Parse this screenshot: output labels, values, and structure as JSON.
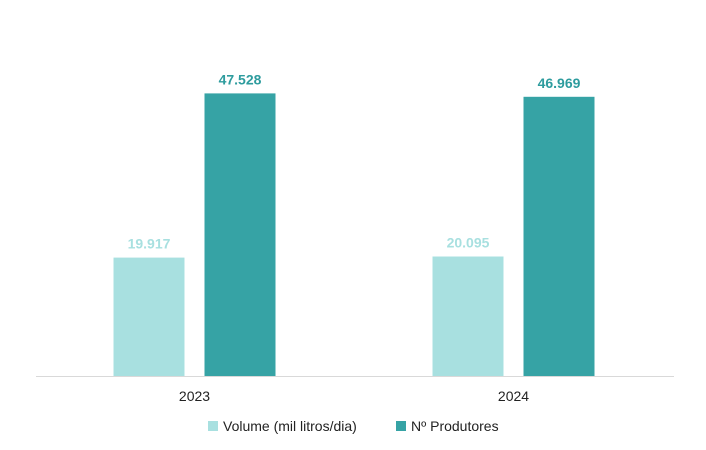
{
  "chart_data": {
    "type": "bar",
    "categories": [
      "2023",
      "2024"
    ],
    "series": [
      {
        "name": "Volume (mil litros/dia)",
        "values": [
          19.917,
          20.095
        ],
        "labels": [
          "19.917",
          "20.095"
        ],
        "color": "#A8E0E0",
        "label_color": "#A8E0E0"
      },
      {
        "name": "Nº Produtores",
        "values": [
          47.528,
          46.969
        ],
        "labels": [
          "47.528",
          "46.969"
        ],
        "color": "#36A3A5",
        "label_color": "#2E9C9E"
      }
    ],
    "title": "",
    "xlabel": "",
    "ylabel": "",
    "ylim": [
      0,
      50
    ],
    "grid": false,
    "legend_position": "bottom",
    "axis_color": "#D9D9D9"
  }
}
